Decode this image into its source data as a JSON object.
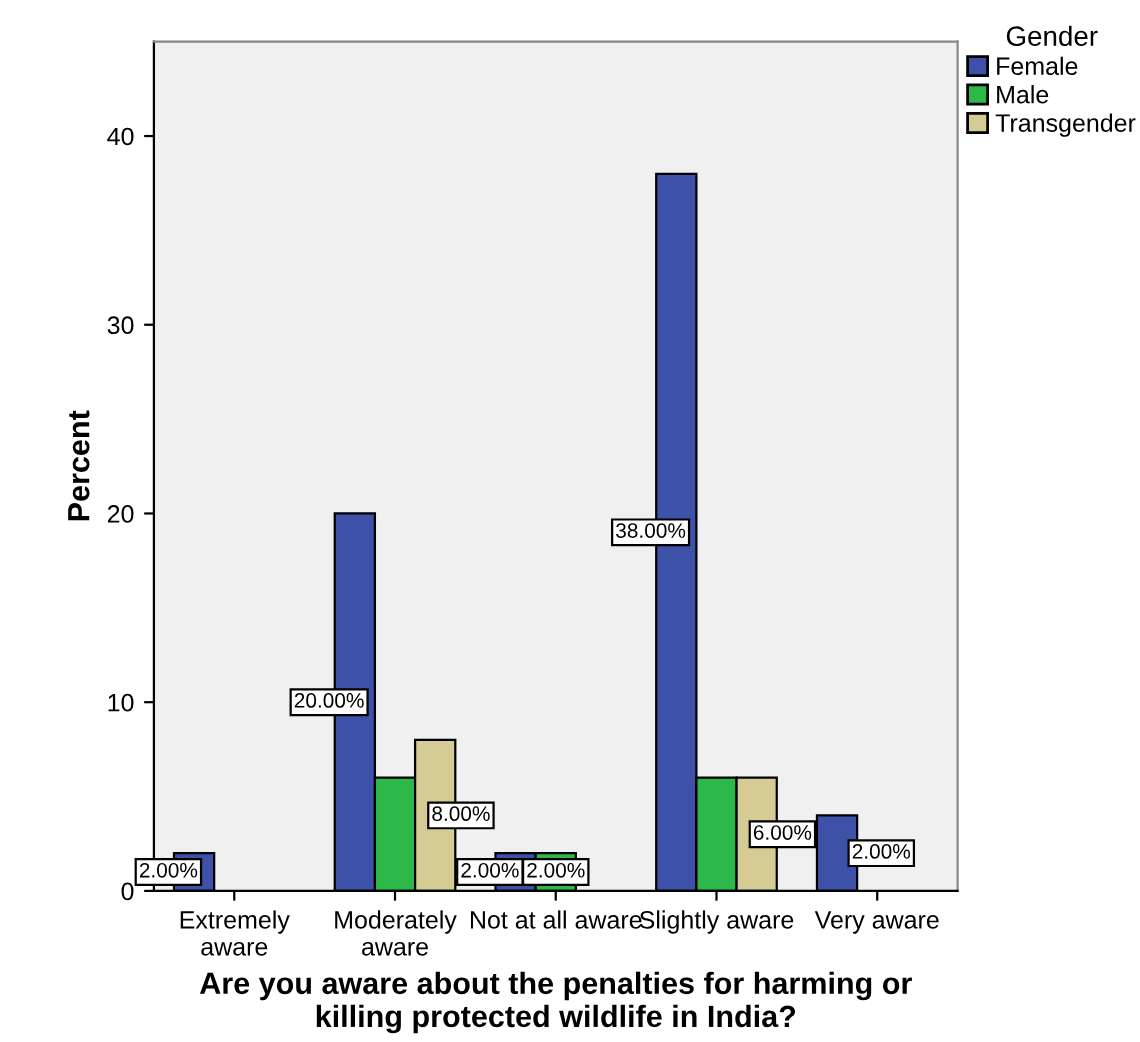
{
  "chart_data": {
    "type": "bar",
    "xlabel": "Are you aware about the penalties for harming or\nkilling protected wildlife in India?",
    "ylabel": "Percent",
    "legend_title": "Gender",
    "legend": "top right",
    "categories": [
      "Extremely\naware",
      "Moderately\naware",
      "Not at all aware",
      "Slightly aware",
      "Very aware"
    ],
    "series": [
      {
        "name": "Female",
        "color": "#3d51a8",
        "values": [
          2,
          20,
          2,
          38,
          4
        ],
        "value_labels": [
          "2.00%",
          "20.00%",
          "2.00%",
          "38.00%",
          null
        ]
      },
      {
        "name": "Male",
        "color": "#2db84a",
        "values": [
          null,
          6,
          2,
          6,
          null
        ],
        "value_labels": [
          null,
          null,
          "2.00%",
          null,
          null
        ]
      },
      {
        "name": "Transgender",
        "color": "#d4cc94",
        "values": [
          null,
          8,
          null,
          6,
          null
        ],
        "value_labels": [
          null,
          "8.00%",
          null,
          "6.00%",
          null
        ]
      }
    ],
    "annotations": [
      "2.00%"
    ],
    "ylim": [
      0,
      45
    ],
    "yticks": [
      0,
      10,
      20,
      30,
      40
    ],
    "grid": false
  }
}
